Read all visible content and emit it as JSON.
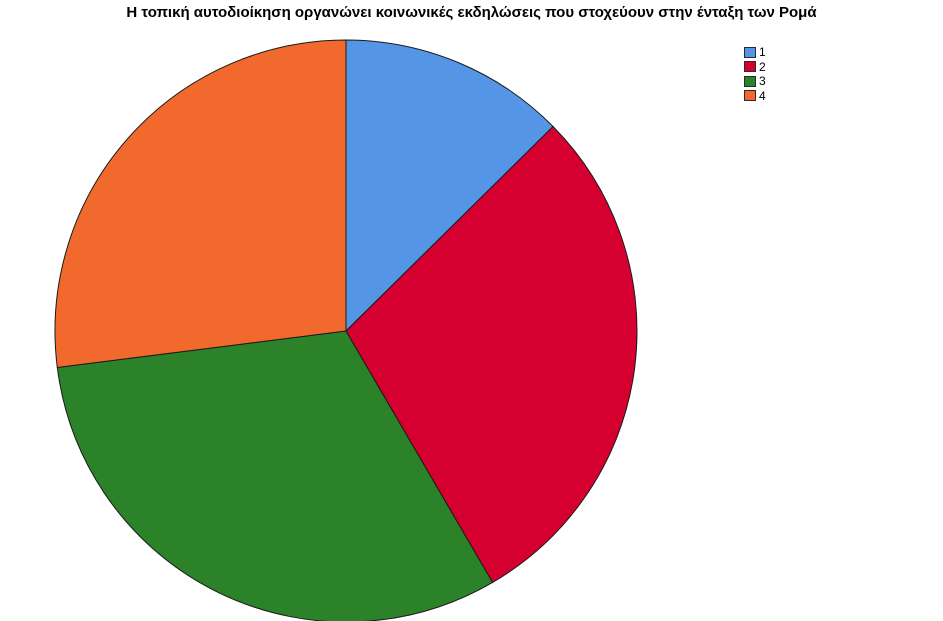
{
  "chart_data": {
    "type": "pie",
    "title": "Η τοπική αυτοδιοίκηση οργανώνει κοινωνικές εκδηλώσεις που στοχεύουν στην ένταξη των Ρομά",
    "categories": [
      "1",
      "2",
      "3",
      "4"
    ],
    "values": [
      12.6,
      29.0,
      31.4,
      27.0
    ],
    "colors": [
      "#5595e5",
      "#d5002f",
      "#2b8229",
      "#f2692e"
    ],
    "start_angle_deg": 0,
    "direction": "clockwise",
    "legend_position": "top-right",
    "data_labels": false
  }
}
